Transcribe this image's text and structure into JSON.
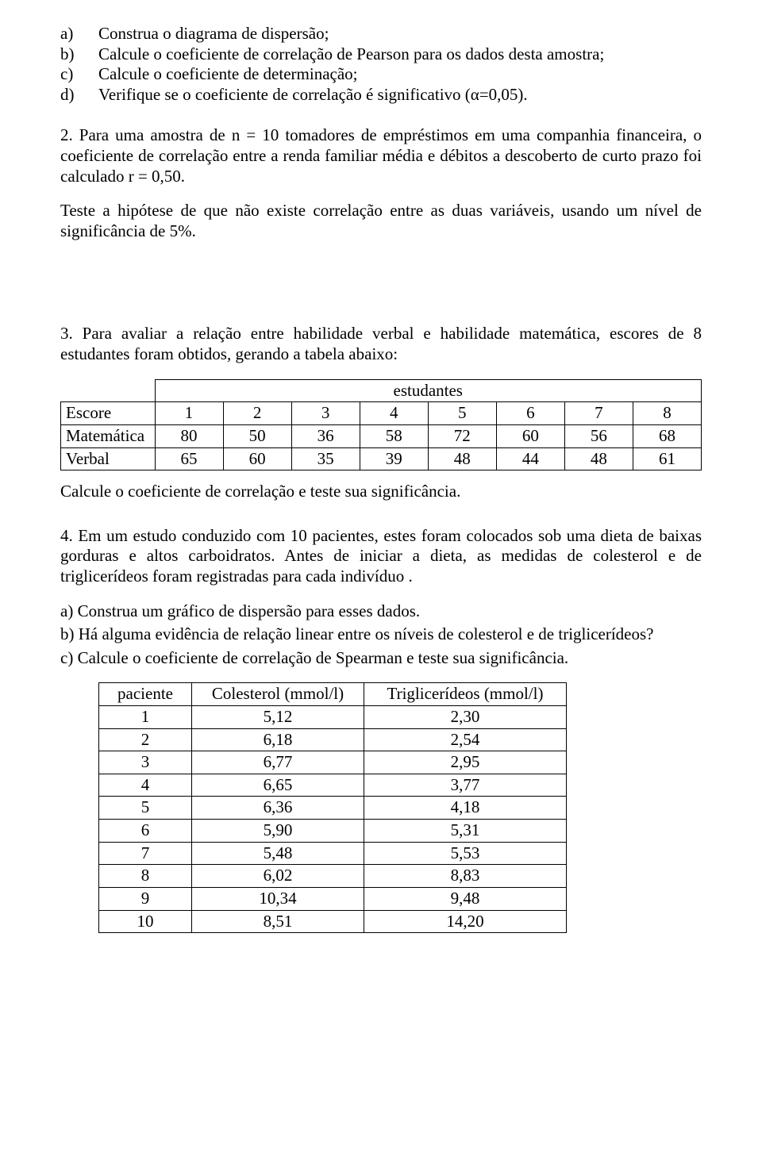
{
  "q1": {
    "items": [
      {
        "marker": "a)",
        "text": "Construa o diagrama de dispersão;"
      },
      {
        "marker": "b)",
        "text": "Calcule o coeficiente de correlação de Pearson para os dados desta amostra;"
      },
      {
        "marker": "c)",
        "text": "Calcule o coeficiente de determinação;"
      },
      {
        "marker": "d)",
        "text": "Verifique se o coeficiente de correlação é significativo (α=0,05)."
      }
    ]
  },
  "q2": {
    "text": "2. Para uma amostra de n = 10 tomadores de empréstimos em uma companhia financeira, o coeficiente de correlação entre a renda familiar média e débitos a descoberto de curto prazo foi calculado r = 0,50.",
    "text2": "Teste a hipótese de que não existe correlação entre as duas variáveis, usando um nível de significância de 5%."
  },
  "q3": {
    "text": "3. Para avaliar a relação entre habilidade verbal e habilidade matemática, escores de 8 estudantes foram obtidos, gerando a tabela abaixo:",
    "table": {
      "header_span": "estudantes",
      "row_labels": [
        "Escore",
        "Matemática",
        "Verbal"
      ],
      "cols": [
        "1",
        "2",
        "3",
        "4",
        "5",
        "6",
        "7",
        "8"
      ],
      "matematica": [
        "80",
        "50",
        "36",
        "58",
        "72",
        "60",
        "56",
        "68"
      ],
      "verbal": [
        "65",
        "60",
        "35",
        "39",
        "48",
        "44",
        "48",
        "61"
      ]
    },
    "after": "Calcule o coeficiente de correlação e teste sua significância."
  },
  "q4": {
    "text": "4. Em um estudo conduzido com 10 pacientes, estes foram colocados sob uma dieta de baixas gorduras e altos carboidratos. Antes de iniciar a dieta, as medidas de colesterol e de triglicerídeos foram registradas para cada indivíduo .",
    "a": "a) Construa um gráfico de dispersão para esses dados.",
    "b": "b) Há alguma evidência de relação linear entre os níveis de colesterol e de triglicerídeos?",
    "c": "c) Calcule o coeficiente de  correlação de Spearman e teste sua significância.",
    "table": {
      "headers": [
        "paciente",
        "Colesterol (mmol/l)",
        "Triglicerídeos (mmol/l)"
      ],
      "rows": [
        [
          "1",
          "5,12",
          "2,30"
        ],
        [
          "2",
          "6,18",
          "2,54"
        ],
        [
          "3",
          "6,77",
          "2,95"
        ],
        [
          "4",
          "6,65",
          "3,77"
        ],
        [
          "5",
          "6,36",
          "4,18"
        ],
        [
          "6",
          "5,90",
          "5,31"
        ],
        [
          "7",
          "5,48",
          "5,53"
        ],
        [
          "8",
          "6,02",
          "8,83"
        ],
        [
          "9",
          "10,34",
          "9,48"
        ],
        [
          "10",
          "8,51",
          "14,20"
        ]
      ]
    }
  }
}
